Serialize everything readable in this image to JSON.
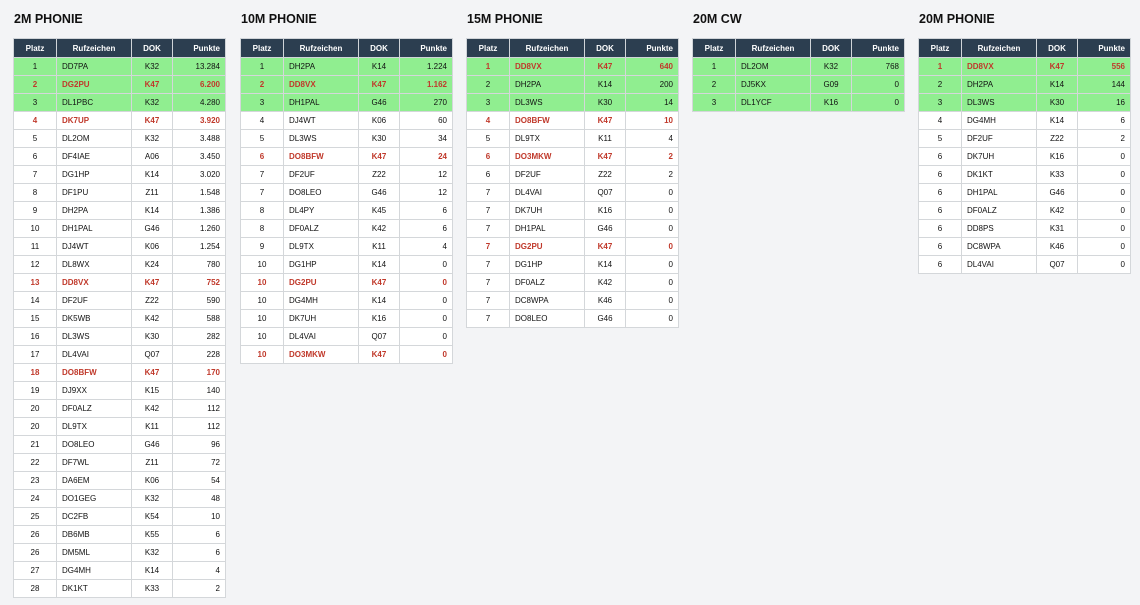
{
  "headers": {
    "rank": "Platz",
    "call": "Rufzeichen",
    "dok": "DOK",
    "points": "Punkte"
  },
  "colors": {
    "header_bg": "#2c3e50",
    "top_rank_bg": "#90ee90",
    "club_text": "#c0392b",
    "page_bg": "#f3f4f6"
  },
  "boards": [
    {
      "title": "2M PHONIE",
      "rows": [
        {
          "rank": "1",
          "call": "DD7PA",
          "dok": "K32",
          "points": "13.284",
          "top": true,
          "club": false
        },
        {
          "rank": "2",
          "call": "DG2PU",
          "dok": "K47",
          "points": "6.200",
          "top": true,
          "club": true
        },
        {
          "rank": "3",
          "call": "DL1PBC",
          "dok": "K32",
          "points": "4.280",
          "top": true,
          "club": false
        },
        {
          "rank": "4",
          "call": "DK7UP",
          "dok": "K47",
          "points": "3.920",
          "top": false,
          "club": true
        },
        {
          "rank": "5",
          "call": "DL2OM",
          "dok": "K32",
          "points": "3.488",
          "top": false,
          "club": false
        },
        {
          "rank": "6",
          "call": "DF4IAE",
          "dok": "A06",
          "points": "3.450",
          "top": false,
          "club": false
        },
        {
          "rank": "7",
          "call": "DG1HP",
          "dok": "K14",
          "points": "3.020",
          "top": false,
          "club": false
        },
        {
          "rank": "8",
          "call": "DF1PU",
          "dok": "Z11",
          "points": "1.548",
          "top": false,
          "club": false
        },
        {
          "rank": "9",
          "call": "DH2PA",
          "dok": "K14",
          "points": "1.386",
          "top": false,
          "club": false
        },
        {
          "rank": "10",
          "call": "DH1PAL",
          "dok": "G46",
          "points": "1.260",
          "top": false,
          "club": false
        },
        {
          "rank": "11",
          "call": "DJ4WT",
          "dok": "K06",
          "points": "1.254",
          "top": false,
          "club": false
        },
        {
          "rank": "12",
          "call": "DL8WX",
          "dok": "K24",
          "points": "780",
          "top": false,
          "club": false
        },
        {
          "rank": "13",
          "call": "DD8VX",
          "dok": "K47",
          "points": "752",
          "top": false,
          "club": true
        },
        {
          "rank": "14",
          "call": "DF2UF",
          "dok": "Z22",
          "points": "590",
          "top": false,
          "club": false
        },
        {
          "rank": "15",
          "call": "DK5WB",
          "dok": "K42",
          "points": "588",
          "top": false,
          "club": false
        },
        {
          "rank": "16",
          "call": "DL3WS",
          "dok": "K30",
          "points": "282",
          "top": false,
          "club": false
        },
        {
          "rank": "17",
          "call": "DL4VAI",
          "dok": "Q07",
          "points": "228",
          "top": false,
          "club": false
        },
        {
          "rank": "18",
          "call": "DO8BFW",
          "dok": "K47",
          "points": "170",
          "top": false,
          "club": true
        },
        {
          "rank": "19",
          "call": "DJ9XX",
          "dok": "K15",
          "points": "140",
          "top": false,
          "club": false
        },
        {
          "rank": "20",
          "call": "DF0ALZ",
          "dok": "K42",
          "points": "112",
          "top": false,
          "club": false
        },
        {
          "rank": "20",
          "call": "DL9TX",
          "dok": "K11",
          "points": "112",
          "top": false,
          "club": false
        },
        {
          "rank": "21",
          "call": "DO8LEO",
          "dok": "G46",
          "points": "96",
          "top": false,
          "club": false
        },
        {
          "rank": "22",
          "call": "DF7WL",
          "dok": "Z11",
          "points": "72",
          "top": false,
          "club": false
        },
        {
          "rank": "23",
          "call": "DA6EM",
          "dok": "K06",
          "points": "54",
          "top": false,
          "club": false
        },
        {
          "rank": "24",
          "call": "DO1GEG",
          "dok": "K32",
          "points": "48",
          "top": false,
          "club": false
        },
        {
          "rank": "25",
          "call": "DC2FB",
          "dok": "K54",
          "points": "10",
          "top": false,
          "club": false
        },
        {
          "rank": "26",
          "call": "DB6MB",
          "dok": "K55",
          "points": "6",
          "top": false,
          "club": false
        },
        {
          "rank": "26",
          "call": "DM5ML",
          "dok": "K32",
          "points": "6",
          "top": false,
          "club": false
        },
        {
          "rank": "27",
          "call": "DG4MH",
          "dok": "K14",
          "points": "4",
          "top": false,
          "club": false
        },
        {
          "rank": "28",
          "call": "DK1KT",
          "dok": "K33",
          "points": "2",
          "top": false,
          "club": false
        }
      ]
    },
    {
      "title": "10M PHONIE",
      "rows": [
        {
          "rank": "1",
          "call": "DH2PA",
          "dok": "K14",
          "points": "1.224",
          "top": true,
          "club": false
        },
        {
          "rank": "2",
          "call": "DD8VX",
          "dok": "K47",
          "points": "1.162",
          "top": true,
          "club": true
        },
        {
          "rank": "3",
          "call": "DH1PAL",
          "dok": "G46",
          "points": "270",
          "top": true,
          "club": false
        },
        {
          "rank": "4",
          "call": "DJ4WT",
          "dok": "K06",
          "points": "60",
          "top": false,
          "club": false
        },
        {
          "rank": "5",
          "call": "DL3WS",
          "dok": "K30",
          "points": "34",
          "top": false,
          "club": false
        },
        {
          "rank": "6",
          "call": "DO8BFW",
          "dok": "K47",
          "points": "24",
          "top": false,
          "club": true
        },
        {
          "rank": "7",
          "call": "DF2UF",
          "dok": "Z22",
          "points": "12",
          "top": false,
          "club": false
        },
        {
          "rank": "7",
          "call": "DO8LEO",
          "dok": "G46",
          "points": "12",
          "top": false,
          "club": false
        },
        {
          "rank": "8",
          "call": "DL4PY",
          "dok": "K45",
          "points": "6",
          "top": false,
          "club": false
        },
        {
          "rank": "8",
          "call": "DF0ALZ",
          "dok": "K42",
          "points": "6",
          "top": false,
          "club": false
        },
        {
          "rank": "9",
          "call": "DL9TX",
          "dok": "K11",
          "points": "4",
          "top": false,
          "club": false
        },
        {
          "rank": "10",
          "call": "DG1HP",
          "dok": "K14",
          "points": "0",
          "top": false,
          "club": false
        },
        {
          "rank": "10",
          "call": "DG2PU",
          "dok": "K47",
          "points": "0",
          "top": false,
          "club": true
        },
        {
          "rank": "10",
          "call": "DG4MH",
          "dok": "K14",
          "points": "0",
          "top": false,
          "club": false
        },
        {
          "rank": "10",
          "call": "DK7UH",
          "dok": "K16",
          "points": "0",
          "top": false,
          "club": false
        },
        {
          "rank": "10",
          "call": "DL4VAI",
          "dok": "Q07",
          "points": "0",
          "top": false,
          "club": false
        },
        {
          "rank": "10",
          "call": "DO3MKW",
          "dok": "K47",
          "points": "0",
          "top": false,
          "club": true
        }
      ]
    },
    {
      "title": "15M PHONIE",
      "rows": [
        {
          "rank": "1",
          "call": "DD8VX",
          "dok": "K47",
          "points": "640",
          "top": true,
          "club": true
        },
        {
          "rank": "2",
          "call": "DH2PA",
          "dok": "K14",
          "points": "200",
          "top": true,
          "club": false
        },
        {
          "rank": "3",
          "call": "DL3WS",
          "dok": "K30",
          "points": "14",
          "top": true,
          "club": false
        },
        {
          "rank": "4",
          "call": "DO8BFW",
          "dok": "K47",
          "points": "10",
          "top": false,
          "club": true
        },
        {
          "rank": "5",
          "call": "DL9TX",
          "dok": "K11",
          "points": "4",
          "top": false,
          "club": false
        },
        {
          "rank": "6",
          "call": "DO3MKW",
          "dok": "K47",
          "points": "2",
          "top": false,
          "club": true
        },
        {
          "rank": "6",
          "call": "DF2UF",
          "dok": "Z22",
          "points": "2",
          "top": false,
          "club": false
        },
        {
          "rank": "7",
          "call": "DL4VAI",
          "dok": "Q07",
          "points": "0",
          "top": false,
          "club": false
        },
        {
          "rank": "7",
          "call": "DK7UH",
          "dok": "K16",
          "points": "0",
          "top": false,
          "club": false
        },
        {
          "rank": "7",
          "call": "DH1PAL",
          "dok": "G46",
          "points": "0",
          "top": false,
          "club": false
        },
        {
          "rank": "7",
          "call": "DG2PU",
          "dok": "K47",
          "points": "0",
          "top": false,
          "club": true
        },
        {
          "rank": "7",
          "call": "DG1HP",
          "dok": "K14",
          "points": "0",
          "top": false,
          "club": false
        },
        {
          "rank": "7",
          "call": "DF0ALZ",
          "dok": "K42",
          "points": "0",
          "top": false,
          "club": false
        },
        {
          "rank": "7",
          "call": "DC8WPA",
          "dok": "K46",
          "points": "0",
          "top": false,
          "club": false
        },
        {
          "rank": "7",
          "call": "DO8LEO",
          "dok": "G46",
          "points": "0",
          "top": false,
          "club": false
        }
      ]
    },
    {
      "title": "20M CW",
      "rows": [
        {
          "rank": "1",
          "call": "DL2OM",
          "dok": "K32",
          "points": "768",
          "top": true,
          "club": false
        },
        {
          "rank": "2",
          "call": "DJ5KX",
          "dok": "G09",
          "points": "0",
          "top": true,
          "club": false
        },
        {
          "rank": "3",
          "call": "DL1YCF",
          "dok": "K16",
          "points": "0",
          "top": true,
          "club": false
        }
      ]
    },
    {
      "title": "20M PHONIE",
      "rows": [
        {
          "rank": "1",
          "call": "DD8VX",
          "dok": "K47",
          "points": "556",
          "top": true,
          "club": true
        },
        {
          "rank": "2",
          "call": "DH2PA",
          "dok": "K14",
          "points": "144",
          "top": true,
          "club": false
        },
        {
          "rank": "3",
          "call": "DL3WS",
          "dok": "K30",
          "points": "16",
          "top": true,
          "club": false
        },
        {
          "rank": "4",
          "call": "DG4MH",
          "dok": "K14",
          "points": "6",
          "top": false,
          "club": false
        },
        {
          "rank": "5",
          "call": "DF2UF",
          "dok": "Z22",
          "points": "2",
          "top": false,
          "club": false
        },
        {
          "rank": "6",
          "call": "DK7UH",
          "dok": "K16",
          "points": "0",
          "top": false,
          "club": false
        },
        {
          "rank": "6",
          "call": "DK1KT",
          "dok": "K33",
          "points": "0",
          "top": false,
          "club": false
        },
        {
          "rank": "6",
          "call": "DH1PAL",
          "dok": "G46",
          "points": "0",
          "top": false,
          "club": false
        },
        {
          "rank": "6",
          "call": "DF0ALZ",
          "dok": "K42",
          "points": "0",
          "top": false,
          "club": false
        },
        {
          "rank": "6",
          "call": "DD8PS",
          "dok": "K31",
          "points": "0",
          "top": false,
          "club": false
        },
        {
          "rank": "6",
          "call": "DC8WPA",
          "dok": "K46",
          "points": "0",
          "top": false,
          "club": false
        },
        {
          "rank": "6",
          "call": "DL4VAI",
          "dok": "Q07",
          "points": "0",
          "top": false,
          "club": false
        }
      ]
    }
  ]
}
